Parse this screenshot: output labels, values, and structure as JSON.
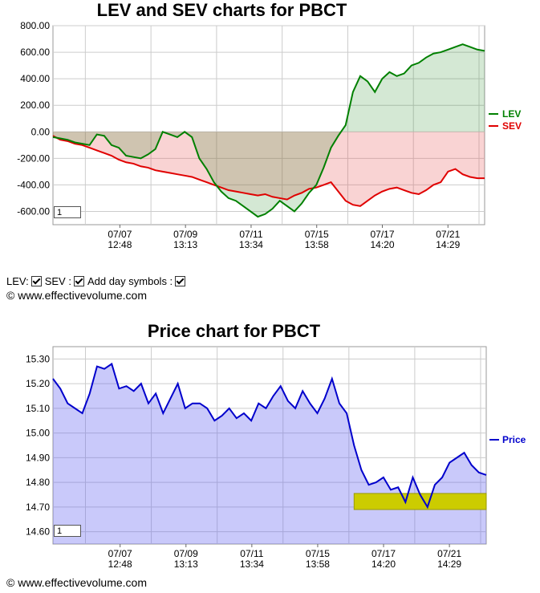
{
  "chart_data": [
    {
      "type": "line",
      "title": "LEV and SEV charts for PBCT",
      "ylim": [
        -700,
        800
      ],
      "yticks": [
        "800.00",
        "600.00",
        "400.00",
        "200.00",
        "0.00",
        "-200.00",
        "-400.00",
        "-600.00"
      ],
      "yticks_values": [
        800,
        600,
        400,
        200,
        0,
        -200,
        -400,
        -600
      ],
      "x_tick_labels": [
        {
          "date": "07/07",
          "time": "12:48"
        },
        {
          "date": "07/09",
          "time": "13:13"
        },
        {
          "date": "07/11",
          "time": "13:34"
        },
        {
          "date": "07/15",
          "time": "13:58"
        },
        {
          "date": "07/17",
          "time": "14:20"
        },
        {
          "date": "07/21",
          "time": "14:29"
        }
      ],
      "legend_position": "right",
      "series": [
        {
          "name": "LEV",
          "color": "#008000",
          "values": [
            -40,
            -50,
            -60,
            -80,
            -90,
            -100,
            -20,
            -30,
            -100,
            -120,
            -180,
            -190,
            -200,
            -170,
            -130,
            0,
            -20,
            -40,
            0,
            -40,
            -200,
            -280,
            -380,
            -450,
            -500,
            -520,
            -560,
            -600,
            -640,
            -620,
            -580,
            -520,
            -560,
            -600,
            -540,
            -460,
            -400,
            -270,
            -120,
            -30,
            50,
            300,
            420,
            380,
            300,
            400,
            450,
            420,
            440,
            500,
            520,
            560,
            590,
            600,
            620,
            640,
            660,
            640,
            620,
            610
          ]
        },
        {
          "name": "SEV",
          "color": "#e00000",
          "values": [
            -30,
            -60,
            -70,
            -90,
            -100,
            -120,
            -140,
            -160,
            -180,
            -210,
            -230,
            -240,
            -260,
            -270,
            -290,
            -300,
            -310,
            -320,
            -330,
            -340,
            -360,
            -380,
            -400,
            -420,
            -440,
            -450,
            -460,
            -470,
            -480,
            -470,
            -490,
            -500,
            -510,
            -480,
            -460,
            -430,
            -420,
            -400,
            -380,
            -450,
            -520,
            -550,
            -560,
            -520,
            -480,
            -450,
            -430,
            -420,
            -440,
            -460,
            -470,
            -440,
            -400,
            -380,
            -300,
            -280,
            -320,
            -340,
            -350,
            -350
          ]
        }
      ],
      "zoom_value": "1"
    },
    {
      "type": "area",
      "title": "Price chart for PBCT",
      "ylim": [
        14.55,
        15.35
      ],
      "yticks": [
        "15.30",
        "15.20",
        "15.10",
        "15.00",
        "14.90",
        "14.80",
        "14.70",
        "14.60"
      ],
      "yticks_values": [
        15.3,
        15.2,
        15.1,
        15.0,
        14.9,
        14.8,
        14.7,
        14.6
      ],
      "x_tick_labels": [
        {
          "date": "07/07",
          "time": "12:48"
        },
        {
          "date": "07/09",
          "time": "13:13"
        },
        {
          "date": "07/11",
          "time": "13:34"
        },
        {
          "date": "07/15",
          "time": "13:58"
        },
        {
          "date": "07/17",
          "time": "14:20"
        },
        {
          "date": "07/21",
          "time": "14:29"
        }
      ],
      "legend_position": "right",
      "series": [
        {
          "name": "Price",
          "color": "#0000cc",
          "values": [
            15.22,
            15.18,
            15.12,
            15.1,
            15.08,
            15.16,
            15.27,
            15.26,
            15.28,
            15.18,
            15.19,
            15.17,
            15.2,
            15.12,
            15.16,
            15.08,
            15.14,
            15.2,
            15.1,
            15.12,
            15.12,
            15.1,
            15.05,
            15.07,
            15.1,
            15.06,
            15.08,
            15.05,
            15.12,
            15.1,
            15.15,
            15.19,
            15.13,
            15.1,
            15.17,
            15.12,
            15.08,
            15.14,
            15.22,
            15.12,
            15.08,
            14.95,
            14.85,
            14.79,
            14.8,
            14.82,
            14.77,
            14.78,
            14.72,
            14.82,
            14.75,
            14.7,
            14.79,
            14.82,
            14.88,
            14.9,
            14.92,
            14.87,
            14.84,
            14.83
          ]
        }
      ],
      "highlight_band": [
        14.69,
        14.755
      ],
      "zoom_value": "1"
    }
  ],
  "controls": {
    "lev_label": "LEV:",
    "sev_label": "SEV :",
    "day_symbols_label": "Add day symbols :"
  },
  "copyright": "© www.effectivevolume.com"
}
